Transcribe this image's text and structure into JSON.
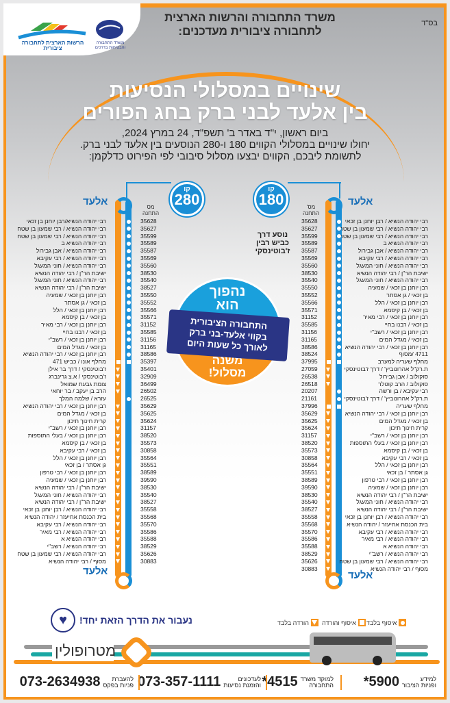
{
  "header": {
    "bsd": "בס\"ד",
    "ministry": [
      "משרד התחבורה והרשות הארצית",
      "לתחבורה ציבורית מעדכנים:"
    ],
    "logo_ministry": "משרד התחבורה והבטיחות בדרכים",
    "logo_authority": "הרשות הארצית לתחבורה ציבורית"
  },
  "title": [
    "שינויים במסלולי הנסיעות",
    "בין אלעד לבני ברק בחג הפורים"
  ],
  "intro": [
    "ביום ראשון, י\"ד באדר ב' תשפ\"ד, 24 במרץ 2024,",
    "יחולו שינויים במסלולי הקווים 180 ו-280 הנוסעים בין אלעד לבני ברק.",
    "לתשומת ליבכם, הקווים יבצעו מסלול סיבובי לפי הפירוט כדלקמן:"
  ],
  "colors": {
    "blue": "#1a8fd6",
    "orange": "#f7941d",
    "navy": "#2a3585"
  },
  "line180": {
    "kav": "קו",
    "number": "180",
    "elad_top": "אלעד",
    "elad_bottom": "אלעד",
    "station_header": "מס' התחנה",
    "note": [
      "נוסע דרך",
      "כביש רבין",
      "ז'בוטינסקי"
    ],
    "stops": [
      [
        "רבי יהודה הנשיא / רבן יוחנן בן זכאי",
        "35628",
        "c"
      ],
      [
        "רבי יהודה הנשיא / רבי שמעון בן שטח",
        "35627",
        "c"
      ],
      [
        "רבי יהודה הנשיא / רבי שמעון בן שטח",
        "35599",
        "c"
      ],
      [
        "רבי יהודה הנשיא ב",
        "35589",
        "c"
      ],
      [
        "רבי יהודה הנשיא / אבן גבירול",
        "35587",
        "c"
      ],
      [
        "רבי יהודה הנשיא / רבי עקיבא",
        "35569",
        "c"
      ],
      [
        "רבי יהודה הנשיא / חוני המעגל",
        "35560",
        "c"
      ],
      [
        "ישיבת הר\"ן / רבי יהודה הנשיא",
        "38530",
        "c"
      ],
      [
        "רבי יהודה הנשיא / חוני המעגל",
        "35540",
        "c"
      ],
      [
        "רבן יוחנן בן זכאי / שמעיה",
        "35550",
        "c"
      ],
      [
        "בן זכאי / גן אסתר",
        "35552",
        "c"
      ],
      [
        "רבן יוחנן בן זכאי / הלל",
        "35566",
        "c"
      ],
      [
        "בן זכאי / בן קיסמא",
        "35571",
        "c"
      ],
      [
        "רבן יוחנן בן זכאי / רבי מאיר",
        "31152",
        "c"
      ],
      [
        "בן זכאי / רבנו בחיי",
        "35585",
        "c"
      ],
      [
        "רבן יוחנן בן זכאי / רשב\"י",
        "31156",
        "c"
      ],
      [
        "בן זכאי / מגדל המים",
        "31165",
        "c"
      ],
      [
        "רבן יוחנן בן זכאי / רבי יהודה הנשיא",
        "38586",
        "c"
      ],
      [
        "4711 /מסוף",
        "38524",
        "c"
      ],
      [
        "מחלף שעריה למערב",
        "37995",
        "s"
      ],
      [
        "ת.רק\"ל אהרונוביץ' / דרך ז'בוטינסקי",
        "27059",
        "t"
      ],
      [
        "סוקולוב / אבן גבירול",
        "26538",
        "t"
      ],
      [
        "סוקולוב / הרב קוטלר",
        "26518",
        "t"
      ],
      [
        "רבי עקיבא / בן ורשה",
        "20207",
        "c"
      ],
      [
        "ת.רק\"ל אהרונוביץ' / דרך ז'בוטינסקי",
        "21161",
        "c"
      ],
      [
        "מחלף שעריה",
        "37996",
        "s"
      ],
      [
        "רבן יוחנן בן זכאי / רבי יהודה הנשיא",
        "35629",
        "t"
      ],
      [
        "בן זכאי / מגדל המים",
        "35625",
        "t"
      ],
      [
        "קרית חינוך תיכון",
        "35624",
        "t"
      ],
      [
        "רבן יוחנן בן זכאי / רשב\"י",
        "31157",
        "t"
      ],
      [
        "רבן יוחנן בן זכאי / בעלי התוספות",
        "38520",
        "t"
      ],
      [
        "בן זכאי / בן קיסמא",
        "35573",
        "t"
      ],
      [
        "בן זכאי / רבי עקיבא",
        "30858",
        "t"
      ],
      [
        "רבן יוחנן בן זכאי / הלל",
        "35564",
        "t"
      ],
      [
        "גן אסתר / בן זכאי",
        "35551",
        "t"
      ],
      [
        "רבן יוחנן בן זכאי / רבי טרפון",
        "38589",
        "t"
      ],
      [
        "רבן יוחנן בן זכאי / שמעיה",
        "39590",
        "t"
      ],
      [
        "ישיבת הר\"ן / רבי יהודה הנשיא",
        "38530",
        "t"
      ],
      [
        "רבי יהודה הנשיא / חוני המעגל",
        "35540",
        "t"
      ],
      [
        "ישיבת הר\"ן / רבי יהודה הנשיא",
        "38527",
        "t"
      ],
      [
        "רבי יהודה הנשיא / רבן יוחנן בן זכאי",
        "35558",
        "t"
      ],
      [
        "בית הכנסת אחיעזר / יהודה הנשיא",
        "35568",
        "t"
      ],
      [
        "רבי יהודה הנשיא / רבי עקיבא",
        "35570",
        "t"
      ],
      [
        "רבי יהודה הנשיא / רבי מאיר",
        "35586",
        "t"
      ],
      [
        "רבי יהודה הנשיא א",
        "35588",
        "t"
      ],
      [
        "רבי יהודה הנשיא / רשב\"י",
        "38529",
        "t"
      ],
      [
        "רבי יהודה הנשיא / רבי שמעון בן שטח",
        "35626",
        "t"
      ],
      [
        "מסוף / רבי יהודה הנשיא",
        "30883",
        "t"
      ]
    ]
  },
  "line280": {
    "kav": "קו",
    "number": "280",
    "elad_top": "אלעד",
    "elad_bottom": "אלעד",
    "station_header": "מס התחנה",
    "stops": [
      [
        "רבי יהודה הנשיא/רבן יוחנן בן זכאי",
        "35628",
        "c"
      ],
      [
        "רבי יהודה הנשיא / רבי שמעון בן שטח",
        "35627",
        "c"
      ],
      [
        "רבי יהודה הנשיא / רבי שמעון בן שטח",
        "35599",
        "c"
      ],
      [
        "רבי יהודה הנשיא ב",
        "35589",
        "c"
      ],
      [
        "רבי יהודה הנשיא / אבן גבירול",
        "35587",
        "c"
      ],
      [
        "רבי יהודה הנשיא / רבי עקיבא",
        "35569",
        "c"
      ],
      [
        "רבי יהודה הנשיא / חוני המעגל",
        "35560",
        "c"
      ],
      [
        "ישיבת הר\"ן / רבי יהודה הנשיא",
        "38530",
        "c"
      ],
      [
        "רבי יהודה הנשיא / חוני המעגל",
        "35540",
        "c"
      ],
      [
        "ישיבת הר\"ן / רבי יהודה הנשיא",
        "38527",
        "c"
      ],
      [
        "רבן יוחנן בן זכאי / שמעיה",
        "35550",
        "c"
      ],
      [
        "בן זכאי / גן אסתר",
        "35552",
        "c"
      ],
      [
        "רבן יוחנן בן זכאי / הלל",
        "35566",
        "c"
      ],
      [
        "בן זכאי / בן קיסמא",
        "35571",
        "c"
      ],
      [
        "רבן יוחנן בן זכאי / רבי מאיר",
        "31152",
        "c"
      ],
      [
        "בן זכאי / רבנו בחיי",
        "35585",
        "c"
      ],
      [
        "רבן יוחנן בן זכאי / רשב\"י",
        "31156",
        "c"
      ],
      [
        "בן זכאי / מגדל המים",
        "31165",
        "c"
      ],
      [
        "רבן יוחנן בן זכאי / רבי יהודה הנשיא",
        "38586",
        "c"
      ],
      [
        "מחלף אונו / כביש 471",
        "35397",
        "s"
      ],
      [
        "ז'בוטינסקי / דרך בר אילן",
        "35401",
        "t"
      ],
      [
        "ז'בוטינסקי / א.צ גרינברג",
        "32909",
        "t"
      ],
      [
        "צומת גבעת שמואל",
        "36499",
        "t"
      ],
      [
        "הרב בן יעקב / בר יוחאי",
        "26502",
        "t"
      ],
      [
        "עזרא / שלמה המלך",
        "26525",
        "c"
      ],
      [
        "רבן יוחנן בן זכאי / רבי יהודה הנשיא",
        "35629",
        "t"
      ],
      [
        "בן זכאי / מגדל המים",
        "35625",
        "t"
      ],
      [
        "קרית חינוך תיכון",
        "35624",
        "t"
      ],
      [
        "רבן יוחנן בן זכאי / רשב\"י",
        "31157",
        "t"
      ],
      [
        "רבן יוחנן בן זכאי / בעלי התוספות",
        "38520",
        "t"
      ],
      [
        "בן זכאי / בן קיסמא",
        "35573",
        "t"
      ],
      [
        "בן זכאי / רבי עקיבא",
        "30858",
        "t"
      ],
      [
        "רבן יוחנן בן זכאי / הלל",
        "35564",
        "t"
      ],
      [
        "גן אסתר / בן זכאי",
        "35551",
        "t"
      ],
      [
        "רבן יוחנן בן זכאי / רבי טרפון",
        "38589",
        "t"
      ],
      [
        "רבן יוחנן בן זכאי / שמעיה",
        "39590",
        "t"
      ],
      [
        "ישיבת הר\"ן / רבי יהודה הנשיא",
        "38530",
        "t"
      ],
      [
        "רבי יהודה הנשיא / חוני המעגל",
        "35540",
        "t"
      ],
      [
        "ישיבת הר\"ן / רבי יהודה הנשיא",
        "38527",
        "t"
      ],
      [
        "רבי יהודה הנשיא / רבן יוחנן בן זכאי",
        "35558",
        "t"
      ],
      [
        "בית הכנסת אחיעזר / יהודה הנשיא",
        "35568",
        "t"
      ],
      [
        "רבי יהודה הנשיא / רבי עקיבא",
        "35570",
        "t"
      ],
      [
        "רבי יהודה הנשיא / רבי מאיר",
        "35586",
        "t"
      ],
      [
        "רבי יהודה הנשיא א",
        "35588",
        "t"
      ],
      [
        "רבי יהודה הנשיא / רשב\"י",
        "38529",
        "t"
      ],
      [
        "רבי יהודה הנשיא / רבי שמעון בן שטח",
        "35626",
        "t"
      ],
      [
        "מסוף / רבי יהודה הנשיא",
        "30883",
        "t"
      ]
    ]
  },
  "badge": {
    "top": [
      "נהפוך",
      "הוא"
    ],
    "middle": [
      "התחבורה הציבורית",
      "בקווי אלעד-בני ברק",
      "לאורך כל שעות היום"
    ],
    "bottom": [
      "משנה",
      "מסלול!"
    ]
  },
  "legend": {
    "pickup": "איסוף בלבד",
    "both": "איסוף והורדה",
    "dropoff": "הורדה בלבד"
  },
  "slogan": "נעבור את הדרך הזאת יחד!",
  "operator": "מטרופולין",
  "contacts": [
    {
      "label": [
        "למידע",
        "ופניות הציבור"
      ],
      "value": "*5900"
    },
    {
      "label": [
        "למוקד משרד",
        "התחבורה"
      ],
      "value": "*4515"
    },
    {
      "label": [
        "לעדכונים",
        "והזמנת נסיעות"
      ],
      "value": "073-357-1111"
    },
    {
      "label": [
        "להעברת",
        "פניות בפקס"
      ],
      "value": "073-2634938"
    }
  ]
}
